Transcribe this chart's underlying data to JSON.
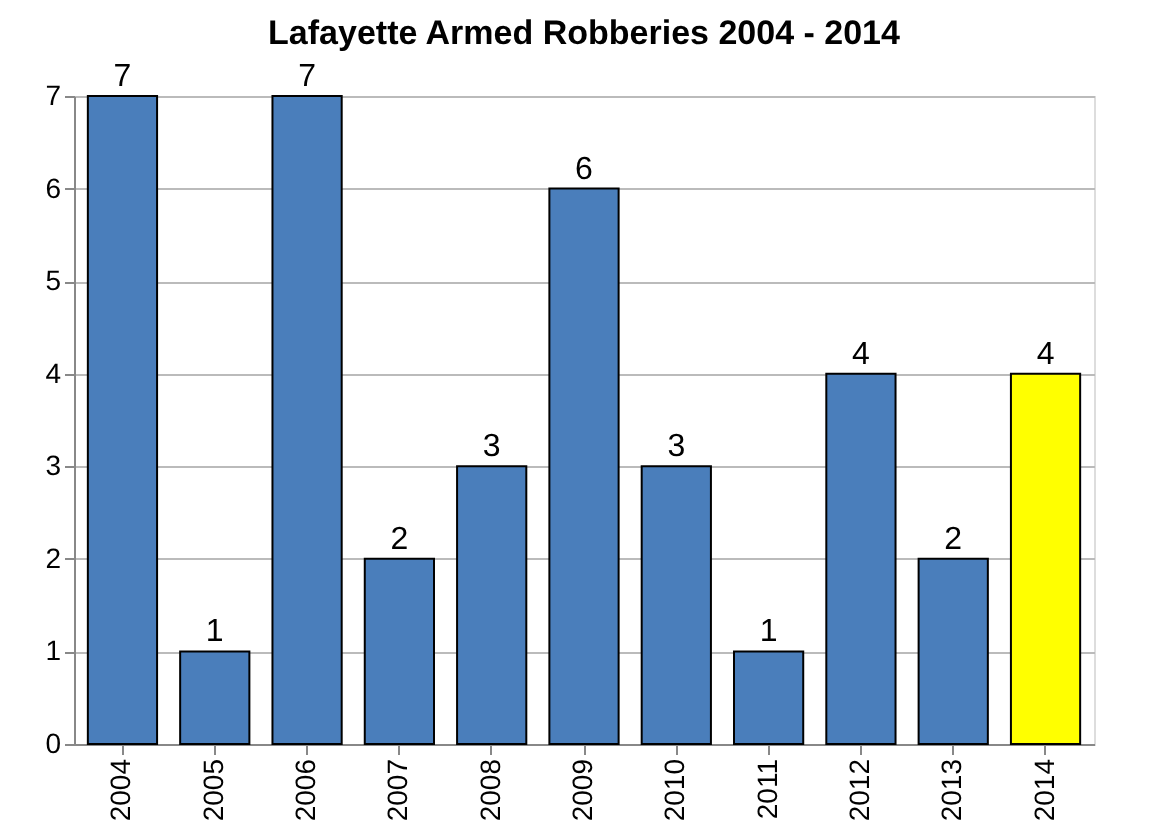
{
  "chart_data": {
    "type": "bar",
    "title": "Lafayette Armed Robberies 2004 - 2014",
    "categories": [
      "2004",
      "2005",
      "2006",
      "2007",
      "2008",
      "2009",
      "2010",
      "2011",
      "2012",
      "2013",
      "2014"
    ],
    "values": [
      7,
      1,
      7,
      2,
      3,
      6,
      3,
      1,
      4,
      2,
      4
    ],
    "colors": [
      "#4a7ebb",
      "#4a7ebb",
      "#4a7ebb",
      "#4a7ebb",
      "#4a7ebb",
      "#4a7ebb",
      "#4a7ebb",
      "#4a7ebb",
      "#4a7ebb",
      "#4a7ebb",
      "#ffff00"
    ],
    "ylim": [
      0,
      7
    ],
    "yticks": [
      0,
      1,
      2,
      3,
      4,
      5,
      6,
      7
    ],
    "grid": "y",
    "data_labels": true
  }
}
